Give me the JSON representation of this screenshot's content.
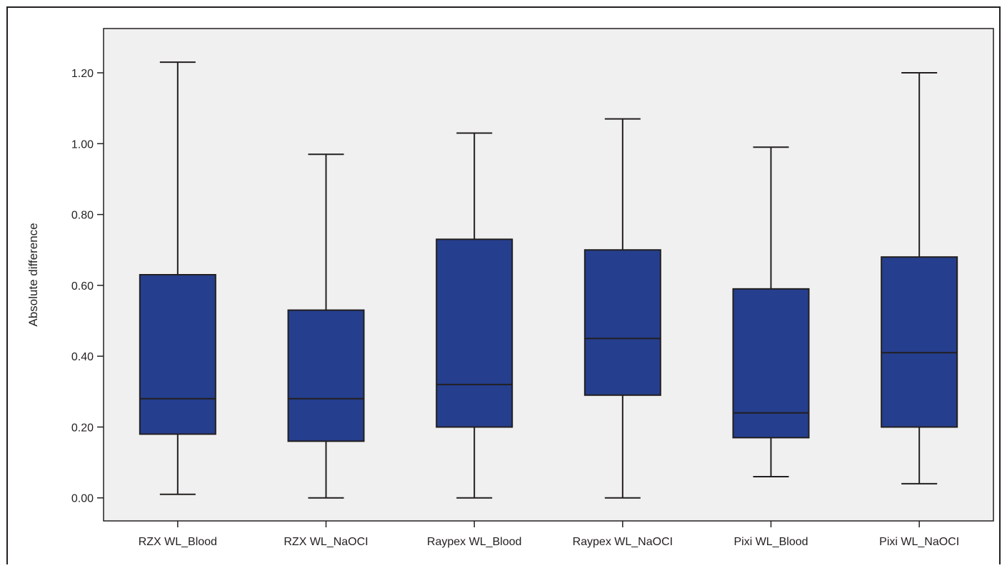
{
  "chart_data": {
    "type": "box",
    "ylabel": "Absolute difference",
    "xlabel": "",
    "ylim": [
      -0.065,
      1.325
    ],
    "yticks": [
      0.0,
      0.2,
      0.4,
      0.6,
      0.8,
      1.0,
      1.2
    ],
    "ytick_labels": [
      "0.00",
      "0.20",
      "0.40",
      "0.60",
      "0.80",
      "1.00",
      "1.20"
    ],
    "grid": false,
    "categories": [
      "RZX WL_Blood",
      "RZX WL_NaOCI",
      "Raypex WL_Blood",
      "Raypex WL_NaOCI",
      "Pixi WL_Blood",
      "Pixi WL_NaOCI"
    ],
    "boxes": [
      {
        "min": 0.01,
        "q1": 0.18,
        "median": 0.28,
        "q3": 0.63,
        "max": 1.23
      },
      {
        "min": 0.0,
        "q1": 0.16,
        "median": 0.28,
        "q3": 0.53,
        "max": 0.97
      },
      {
        "min": 0.0,
        "q1": 0.2,
        "median": 0.32,
        "q3": 0.73,
        "max": 1.03
      },
      {
        "min": 0.0,
        "q1": 0.29,
        "median": 0.45,
        "q3": 0.7,
        "max": 1.07
      },
      {
        "min": 0.06,
        "q1": 0.17,
        "median": 0.24,
        "q3": 0.59,
        "max": 0.99
      },
      {
        "min": 0.04,
        "q1": 0.2,
        "median": 0.41,
        "q3": 0.68,
        "max": 1.2
      }
    ],
    "colors": {
      "box_fill": "#253f8e",
      "plot_background": "#eff0ef",
      "line": "#231f20"
    }
  }
}
